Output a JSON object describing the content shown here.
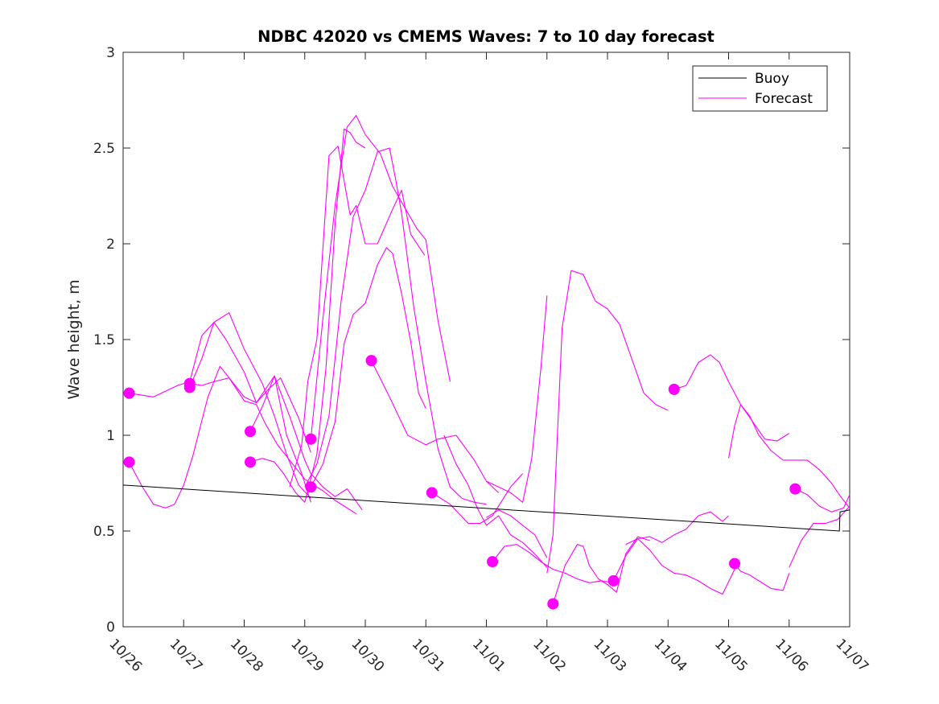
{
  "chart_data": {
    "type": "line",
    "title": "NDBC 42020 vs CMEMS Waves: 7 to 10 day forecast",
    "xlabel": "",
    "ylabel": "Wave height, m",
    "x_unit": "days since 10/26 00:00",
    "xlim": [
      0,
      12
    ],
    "ylim": [
      0,
      3
    ],
    "yticks": [
      0,
      0.5,
      1,
      1.5,
      2,
      2.5,
      3
    ],
    "ytick_labels": [
      "0",
      "0.5",
      "1",
      "1.5",
      "2",
      "2.5",
      "3"
    ],
    "xticks": [
      0,
      1,
      2,
      3,
      4,
      5,
      6,
      7,
      8,
      9,
      10,
      11,
      12
    ],
    "xtick_labels": [
      "10/26",
      "10/27",
      "10/28",
      "10/29",
      "10/30",
      "10/31",
      "11/01",
      "11/02",
      "11/03",
      "11/04",
      "11/05",
      "11/06",
      "11/07"
    ],
    "legend": {
      "position": "top-right",
      "entries": [
        {
          "label": "Buoy",
          "color": "#000000"
        },
        {
          "label": "Forecast",
          "color": "#ff00ff"
        }
      ]
    },
    "colors": {
      "buoy": "#000000",
      "forecast": "#ff00ff",
      "marker": "#ff00ff",
      "axis": "#262626"
    },
    "buoy": {
      "name": "Buoy",
      "x": [
        0,
        11.83,
        11.84,
        12
      ],
      "y": [
        0.74,
        0.5,
        0.6,
        0.61
      ]
    },
    "forecast_series": [
      {
        "name": "Forecast",
        "x": [
          0.1,
          0.5,
          0.9,
          1.1,
          1.3,
          1.5,
          1.75,
          2.0,
          2.3,
          2.5,
          2.7,
          2.9,
          3.1
        ],
        "y": [
          1.22,
          1.2,
          1.26,
          1.28,
          1.52,
          1.59,
          1.64,
          1.45,
          1.27,
          1.1,
          0.9,
          0.74,
          0.67
        ]
      },
      {
        "name": "Forecast",
        "x": [
          0.1,
          0.3,
          0.5,
          0.7,
          0.85,
          1.0,
          1.15,
          1.4,
          1.6,
          1.75,
          2.0,
          2.2,
          2.5,
          2.7,
          2.95,
          3.1
        ],
        "y": [
          0.86,
          0.74,
          0.64,
          0.62,
          0.64,
          0.74,
          0.89,
          1.2,
          1.36,
          1.3,
          1.2,
          1.17,
          1.31,
          1.0,
          0.8,
          0.65
        ]
      },
      {
        "name": "Forecast",
        "x": [
          1.1,
          1.3,
          1.5,
          1.7,
          2.0,
          2.2,
          2.4,
          2.6,
          2.9,
          3.1
        ],
        "y": [
          1.25,
          1.4,
          1.59,
          1.5,
          1.33,
          1.17,
          1.24,
          1.3,
          1.09,
          0.91
        ]
      },
      {
        "name": "Forecast",
        "x": [
          1.1,
          1.3,
          1.5,
          1.75,
          2.0,
          2.2,
          2.35,
          2.55,
          2.8,
          3.0,
          3.3,
          3.5,
          3.7,
          3.85
        ],
        "y": [
          1.27,
          1.26,
          1.28,
          1.3,
          1.18,
          1.16,
          1.06,
          0.95,
          0.85,
          0.77,
          0.71,
          0.66,
          0.62,
          0.59
        ]
      },
      {
        "name": "Forecast",
        "x": [
          2.1,
          2.3,
          2.5,
          2.75,
          3.0,
          3.1,
          3.3,
          3.5,
          3.7,
          3.95
        ],
        "y": [
          1.02,
          1.15,
          1.31,
          1.1,
          0.87,
          0.8,
          0.73,
          0.68,
          0.72,
          0.61
        ]
      },
      {
        "name": "Forecast",
        "x": [
          2.1,
          2.3,
          2.5,
          2.65,
          2.75,
          2.85,
          3.0,
          3.2,
          3.35,
          3.5,
          3.65,
          3.75,
          3.85,
          4.0
        ],
        "y": [
          0.86,
          0.88,
          0.86,
          0.8,
          0.75,
          0.7,
          0.65,
          0.9,
          1.35,
          2.1,
          2.6,
          2.58,
          2.53,
          2.5
        ]
      },
      {
        "name": "Forecast",
        "x": [
          2.75,
          2.95,
          3.05,
          3.2,
          3.4,
          3.55,
          3.75,
          3.85,
          4.0,
          4.2,
          4.45,
          4.6,
          4.75,
          4.98
        ],
        "y": [
          0.73,
          0.95,
          1.28,
          1.5,
          2.46,
          2.51,
          2.15,
          2.2,
          2.0,
          2.0,
          2.18,
          2.28,
          2.05,
          1.94
        ]
      },
      {
        "name": "Forecast",
        "x": [
          3.1,
          3.3,
          3.5,
          3.7,
          3.85,
          4.0,
          4.25,
          4.45,
          4.65,
          4.85,
          5.0,
          5.2,
          5.4
        ],
        "y": [
          0.98,
          1.61,
          2.2,
          2.61,
          2.67,
          2.57,
          2.47,
          2.3,
          2.19,
          2.08,
          2.02,
          1.6,
          1.28
        ]
      },
      {
        "name": "Forecast",
        "x": [
          3.1,
          3.3,
          3.5,
          3.65,
          3.8,
          4.0,
          4.2,
          4.35,
          4.45,
          4.6,
          4.75,
          4.88,
          5.0
        ],
        "y": [
          0.73,
          0.85,
          1.07,
          1.48,
          1.63,
          1.69,
          1.89,
          1.98,
          1.95,
          1.74,
          1.49,
          1.22,
          1.14
        ]
      },
      {
        "name": "Forecast",
        "x": [
          3.0,
          3.2,
          3.4,
          3.6,
          3.8,
          4.0,
          4.2,
          4.4,
          4.5,
          4.6,
          4.8,
          5.0,
          5.2,
          5.4,
          5.6,
          5.8,
          6.0
        ],
        "y": [
          0.73,
          0.85,
          1.1,
          1.7,
          2.14,
          2.28,
          2.48,
          2.5,
          2.34,
          2.16,
          1.67,
          1.28,
          0.93,
          0.73,
          0.67,
          0.65,
          0.64
        ]
      },
      {
        "name": "Forecast",
        "x": [
          4.1,
          4.4,
          4.7,
          5.0,
          5.2,
          5.5,
          5.8,
          6.0,
          6.2
        ],
        "y": [
          1.39,
          1.2,
          1.0,
          0.95,
          0.98,
          1.0,
          0.87,
          0.76,
          0.7
        ]
      },
      {
        "name": "Forecast",
        "x": [
          5.1,
          5.4,
          5.7,
          5.9,
          6.1,
          6.4,
          6.6
        ],
        "y": [
          0.7,
          0.64,
          0.54,
          0.54,
          0.58,
          0.73,
          0.8
        ]
      },
      {
        "name": "Forecast",
        "x": [
          5.3,
          5.5,
          5.7,
          5.85,
          6.0,
          6.2,
          6.4,
          6.6,
          6.8,
          7.0
        ],
        "y": [
          1.0,
          0.85,
          0.74,
          0.62,
          0.53,
          0.58,
          0.48,
          0.44,
          0.38,
          0.31
        ]
      },
      {
        "name": "Forecast",
        "x": [
          6.1,
          6.3,
          6.5,
          6.7,
          6.9,
          7.1,
          7.3,
          7.5,
          7.7,
          7.9,
          8.1
        ],
        "y": [
          0.34,
          0.42,
          0.43,
          0.39,
          0.34,
          0.3,
          0.28,
          0.25,
          0.23,
          0.24,
          0.23
        ]
      },
      {
        "name": "Forecast",
        "x": [
          6.0,
          6.2,
          6.4,
          6.6,
          6.8,
          6.9,
          7.0
        ],
        "y": [
          0.57,
          0.61,
          0.58,
          0.53,
          0.48,
          0.42,
          0.36
        ]
      },
      {
        "name": "Forecast",
        "x": [
          6.0,
          6.2,
          6.4,
          6.6,
          6.75,
          6.9,
          7.0
        ],
        "y": [
          0.76,
          0.73,
          0.7,
          0.65,
          0.88,
          1.35,
          1.73
        ]
      },
      {
        "name": "Forecast",
        "x": [
          7.1,
          7.3,
          7.5,
          7.6,
          7.7,
          7.85,
          8.0,
          8.15,
          8.3,
          8.5,
          8.7
        ],
        "y": [
          0.12,
          0.32,
          0.43,
          0.42,
          0.32,
          0.25,
          0.22,
          0.18,
          0.38,
          0.47,
          0.45
        ]
      },
      {
        "name": "Forecast",
        "x": [
          7.0,
          7.1,
          7.25,
          7.4,
          7.6,
          7.8,
          8.0,
          8.2,
          8.4,
          8.6,
          8.8,
          9.0
        ],
        "y": [
          0.28,
          0.48,
          1.56,
          1.86,
          1.84,
          1.7,
          1.66,
          1.58,
          1.4,
          1.22,
          1.16,
          1.13
        ]
      },
      {
        "name": "Forecast",
        "x": [
          8.1,
          8.3,
          8.5,
          8.7,
          8.9,
          9.1,
          9.3,
          9.5,
          9.7,
          9.9,
          10.0
        ],
        "y": [
          0.24,
          0.37,
          0.46,
          0.47,
          0.44,
          0.48,
          0.51,
          0.58,
          0.6,
          0.55,
          0.58
        ]
      },
      {
        "name": "Forecast",
        "x": [
          8.3,
          8.5,
          8.7,
          8.9,
          9.1,
          9.3,
          9.5,
          9.7,
          9.9,
          10.1
        ],
        "y": [
          0.43,
          0.46,
          0.4,
          0.32,
          0.28,
          0.27,
          0.24,
          0.2,
          0.17,
          0.3
        ]
      },
      {
        "name": "Forecast",
        "x": [
          9.1,
          9.3,
          9.5,
          9.7,
          9.85,
          10.0,
          10.2,
          10.4,
          10.6,
          10.8,
          11.0
        ],
        "y": [
          1.24,
          1.26,
          1.38,
          1.42,
          1.38,
          1.28,
          1.16,
          1.07,
          0.98,
          0.97,
          1.01
        ]
      },
      {
        "name": "Forecast",
        "x": [
          10.1,
          10.2,
          10.35,
          10.5,
          10.7,
          10.9,
          11.0
        ],
        "y": [
          0.33,
          0.29,
          0.27,
          0.24,
          0.2,
          0.19,
          0.28
        ]
      },
      {
        "name": "Forecast",
        "x": [
          10.0,
          10.1,
          10.2,
          10.35,
          10.5,
          10.7,
          10.9,
          11.1,
          11.3
        ],
        "y": [
          0.88,
          1.05,
          1.16,
          1.1,
          1.0,
          0.92,
          0.87,
          0.87,
          0.87
        ]
      },
      {
        "name": "Forecast",
        "x": [
          11.0,
          11.2,
          11.4,
          11.6,
          11.8,
          12.0
        ],
        "y": [
          0.31,
          0.45,
          0.54,
          0.54,
          0.56,
          0.63
        ]
      },
      {
        "name": "Forecast",
        "x": [
          11.1,
          11.3,
          11.5,
          11.7,
          11.9,
          12.0
        ],
        "y": [
          0.72,
          0.69,
          0.63,
          0.6,
          0.62,
          0.69
        ]
      },
      {
        "name": "Forecast",
        "x": [
          11.3,
          11.5,
          11.7,
          11.85,
          12.0
        ],
        "y": [
          0.87,
          0.82,
          0.75,
          0.68,
          0.62
        ]
      }
    ],
    "forecast_start_markers": {
      "x": [
        0.1,
        0.1,
        1.1,
        1.1,
        2.1,
        2.1,
        3.1,
        3.1,
        4.1,
        5.1,
        6.1,
        7.1,
        8.1,
        9.1,
        10.1,
        11.1
      ],
      "y": [
        1.22,
        0.86,
        1.27,
        1.25,
        1.02,
        0.86,
        0.98,
        0.73,
        1.39,
        0.7,
        0.34,
        0.12,
        0.24,
        1.24,
        0.33,
        0.72
      ]
    }
  }
}
